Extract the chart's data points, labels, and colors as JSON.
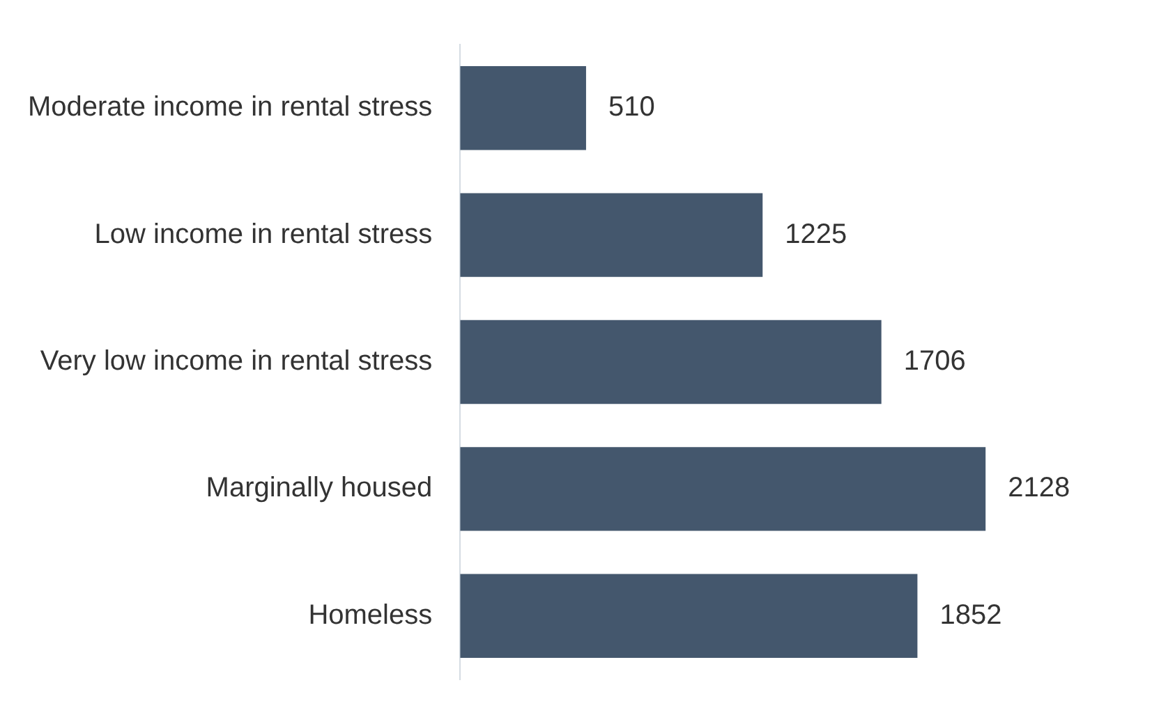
{
  "chart_data": {
    "type": "bar",
    "orientation": "horizontal",
    "categories": [
      "Moderate income in rental stress",
      "Low income in rental stress",
      "Very low income in rental stress",
      "Marginally housed",
      "Homeless"
    ],
    "values": [
      510,
      1225,
      1706,
      2128,
      1852
    ],
    "color": "#44576d",
    "data_labels": true,
    "legend": false,
    "tick_labels": "y"
  }
}
